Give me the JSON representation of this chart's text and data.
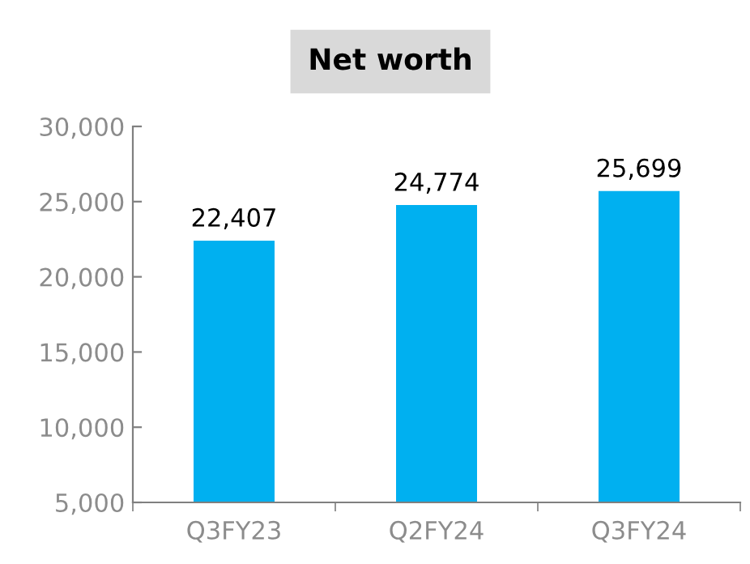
{
  "chart_data": {
    "type": "bar",
    "title": "Net worth",
    "categories": [
      "Q3FY23",
      "Q2FY24",
      "Q3FY24"
    ],
    "values": [
      22407,
      24774,
      25699
    ],
    "color": "#00b0f0",
    "value_labels": [
      "22,407",
      "24,774",
      "25,699"
    ],
    "ylim": [
      5000,
      30000
    ],
    "yticks": [
      {
        "value": 5000,
        "label": "5,000"
      },
      {
        "value": 10000,
        "label": "10,000"
      },
      {
        "value": 15000,
        "label": "15,000"
      },
      {
        "value": 20000,
        "label": "20,000"
      },
      {
        "value": 25000,
        "label": "25,000"
      },
      {
        "value": 30000,
        "label": "30,000"
      }
    ],
    "grid": false,
    "legend": false
  }
}
